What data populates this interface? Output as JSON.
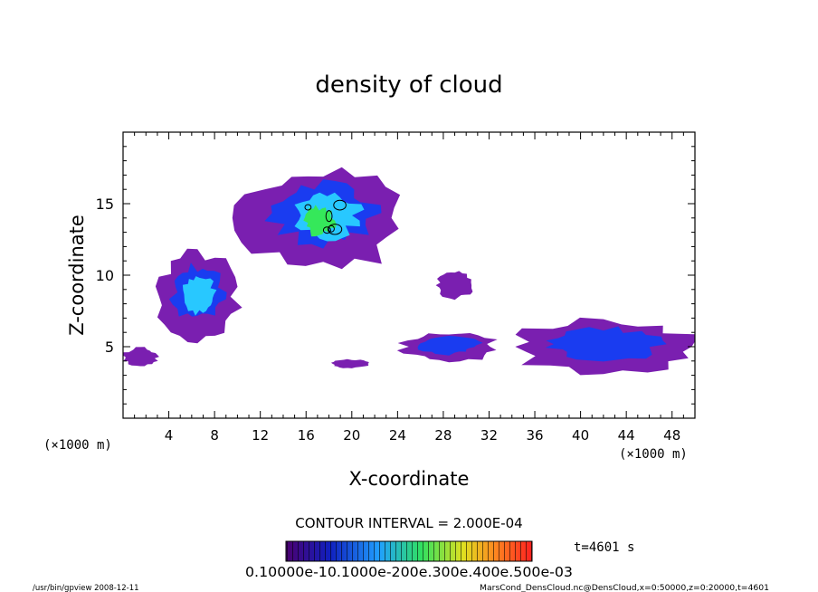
{
  "chart_data": {
    "type": "heatmap",
    "title": "density of cloud",
    "xlabel": "X-coordinate",
    "ylabel": "Z-coordinate",
    "x_unit": "(×1000 m)",
    "y_unit": "(×1000 m)",
    "xlim": [
      0,
      50
    ],
    "ylim": [
      0,
      20
    ],
    "x_ticks": [
      4,
      8,
      12,
      16,
      20,
      24,
      28,
      32,
      36,
      40,
      44,
      48
    ],
    "y_ticks": [
      5,
      10,
      15
    ],
    "contour_interval": "CONTOUR INTERVAL = 2.000E-04",
    "time_label": "t=4601 s",
    "colorbar_labels": "0.10000e-10.1000e-200e.300e.400e.500e-03",
    "footer_left": "/usr/bin/gpview  2008-12-11",
    "footer_right": "MarsCond_DensCloud.nc@DensCloud,x=0:50000,z=0:20000,t=4601",
    "grid": false,
    "colors": {
      "low": "#7a1fb0",
      "mid_low": "#1a3cf0",
      "mid": "#28c8ff",
      "high": "#35e85a",
      "contour": "#000000"
    },
    "clouds": [
      {
        "name": "cloud-left",
        "x_center": 6.5,
        "z_center": 8.5,
        "x_halfwidth": 3.5,
        "z_halfwidth": 3.0,
        "peak_level": "mid"
      },
      {
        "name": "cloud-upper",
        "x_center": 17.5,
        "z_center": 14.0,
        "x_halfwidth": 7.0,
        "z_halfwidth": 3.5,
        "peak_level": "high"
      },
      {
        "name": "cloud-lower-central",
        "x_center": 28.5,
        "z_center": 5.0,
        "x_halfwidth": 4.0,
        "z_halfwidth": 1.0,
        "peak_level": "mid_low"
      },
      {
        "name": "cloud-small",
        "x_center": 29.0,
        "z_center": 9.3,
        "x_halfwidth": 1.5,
        "z_halfwidth": 0.9,
        "peak_level": "low"
      },
      {
        "name": "cloud-right",
        "x_center": 42.0,
        "z_center": 5.0,
        "x_halfwidth": 8.0,
        "z_halfwidth": 1.8,
        "peak_level": "mid_low"
      },
      {
        "name": "cloud-base-left",
        "x_center": 1.5,
        "z_center": 4.3,
        "x_halfwidth": 1.5,
        "z_halfwidth": 0.6,
        "peak_level": "low"
      },
      {
        "name": "cloud-base-mid",
        "x_center": 20.0,
        "z_center": 3.8,
        "x_halfwidth": 1.6,
        "z_halfwidth": 0.3,
        "peak_level": "low"
      }
    ]
  }
}
